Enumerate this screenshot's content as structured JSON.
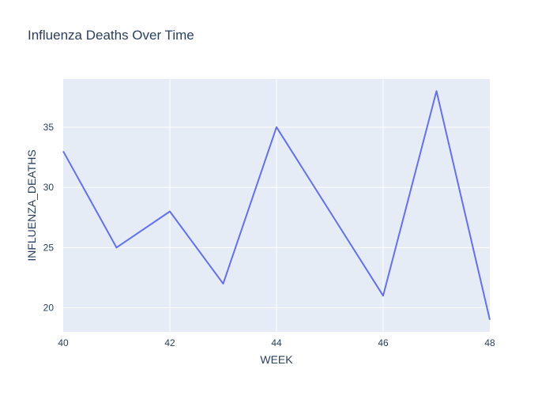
{
  "chart_data": {
    "type": "line",
    "title": "Influenza Deaths  Over Time",
    "xlabel": "WEEK",
    "ylabel": "INFLUENZA_DEATHS",
    "x": [
      40,
      41,
      42,
      43,
      44,
      45,
      46,
      47,
      48
    ],
    "series": [
      {
        "values": [
          33,
          25,
          28,
          22,
          35,
          28,
          21,
          38,
          19
        ]
      }
    ],
    "xlim": [
      40,
      48
    ],
    "ylim": [
      18,
      39
    ],
    "xticks": [
      40,
      42,
      44,
      46,
      48
    ],
    "yticks": [
      20,
      25,
      30,
      35
    ],
    "grid": true,
    "colors": {
      "plot_background": "#e5ecf6",
      "grid": "#ffffff",
      "line": "#636efa",
      "text": "#2a3f5f"
    }
  }
}
